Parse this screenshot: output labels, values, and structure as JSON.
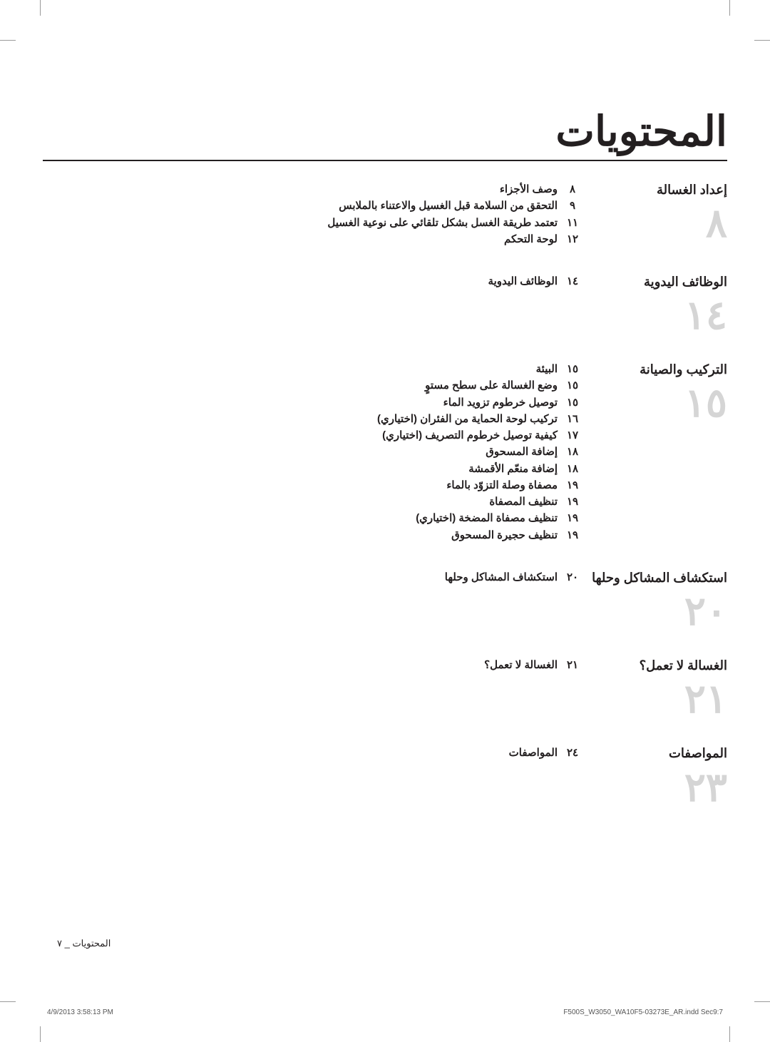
{
  "title": "المحتويات",
  "sections": [
    {
      "title": "إعداد الغسالة",
      "number": "٨",
      "entries": [
        {
          "page": "٨",
          "label": "وصف الأجزاء"
        },
        {
          "page": "٩",
          "label": "التحقق من السلامة قبل الغسيل والاعتناء بالملابس"
        },
        {
          "page": "١١",
          "label": "تعتمد طريقة الغسل بشكل تلقائي على نوعية الغسيل"
        },
        {
          "page": "١٢",
          "label": "لوحة التحكم"
        }
      ]
    },
    {
      "title": "الوظائف اليدوية",
      "number": "١٤",
      "entries": [
        {
          "page": "١٤",
          "label": "الوظائف اليدوية"
        }
      ]
    },
    {
      "title": "التركيب والصيانة",
      "number": "١٥",
      "entries": [
        {
          "page": "١٥",
          "label": "البيئة"
        },
        {
          "page": "١٥",
          "label": "وضع الغسالة على سطح مستوٍ"
        },
        {
          "page": "١٥",
          "label": "توصيل خرطوم تزويد الماء"
        },
        {
          "page": "١٦",
          "label": "تركيب لوحة الحماية من الفئران (اختياري)"
        },
        {
          "page": "١٧",
          "label": "كيفية توصيل خرطوم التصريف (اختياري)"
        },
        {
          "page": "١٨",
          "label": "إضافة المسحوق"
        },
        {
          "page": "١٨",
          "label": "إضافة منعّم الأقمشة"
        },
        {
          "page": "١٩",
          "label": "مصفاة وصلة التزوّد بالماء"
        },
        {
          "page": "١٩",
          "label": "تنظيف المصفاة"
        },
        {
          "page": "١٩",
          "label": "تنظيف مصفاة المضخة (اختياري)"
        },
        {
          "page": "١٩",
          "label": "تنظيف حجيرة المسحوق"
        }
      ]
    },
    {
      "title": "استكشاف المشاكل وحلها",
      "number": "٢٠",
      "entries": [
        {
          "page": "٢٠",
          "label": "استكشاف المشاكل وحلها"
        }
      ]
    },
    {
      "title": "الغسالة لا تعمل؟",
      "number": "٢١",
      "entries": [
        {
          "page": "٢١",
          "label": "الغسالة لا تعمل؟"
        }
      ]
    },
    {
      "title": "المواصفات",
      "number": "٢٣",
      "entries": [
        {
          "page": "٢٤",
          "label": "المواصفات"
        }
      ]
    }
  ],
  "footer_page": "المحتويات _ ٧",
  "print_file": "F500S_W3050_WA10F5-03273E_AR.indd   Sec9:7",
  "print_timestamp": "4/9/2013   3:58:13 PM"
}
